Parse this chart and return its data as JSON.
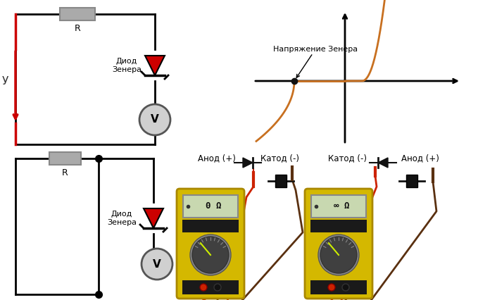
{
  "bg_color": "#ffffff",
  "circuit1": {
    "resistor_label": "R",
    "diode_label": "Диод\nЗенера",
    "volt_label": "V",
    "u_label": "У"
  },
  "circuit2": {
    "resistor_label": "R",
    "diode_label": "Диод\nЗенера",
    "volt_label": "V"
  },
  "graph": {
    "label": "Напряжение Зенера",
    "curve_color": "#c87020",
    "axis_color": "#000000"
  },
  "multimeter1": {
    "display": "0 Ω",
    "label_anode": "Анод (+)",
    "label_cathode": "Катод (-)"
  },
  "multimeter2": {
    "display": "∞ Ω",
    "label_cathode": "Катод (-)",
    "label_anode": "Анод (+)"
  },
  "colors": {
    "wire": "#000000",
    "resistor": "#aaaaaa",
    "resistor_border": "#888888",
    "diode_body": "#cc0000",
    "voltmeter_fill": "#d0d0d0",
    "voltmeter_border": "#555555",
    "red_arrow": "#cc0000",
    "multimeter_yellow": "#d4b800",
    "multimeter_dark": "#2a2a2a",
    "multimeter_mid": "#555555",
    "probe_red": "#cc2200",
    "probe_brown": "#5a3010",
    "display_bg": "#c8d8b0",
    "display_border": "#888888",
    "dial_bg": "#404040",
    "dial_border": "#666666"
  }
}
